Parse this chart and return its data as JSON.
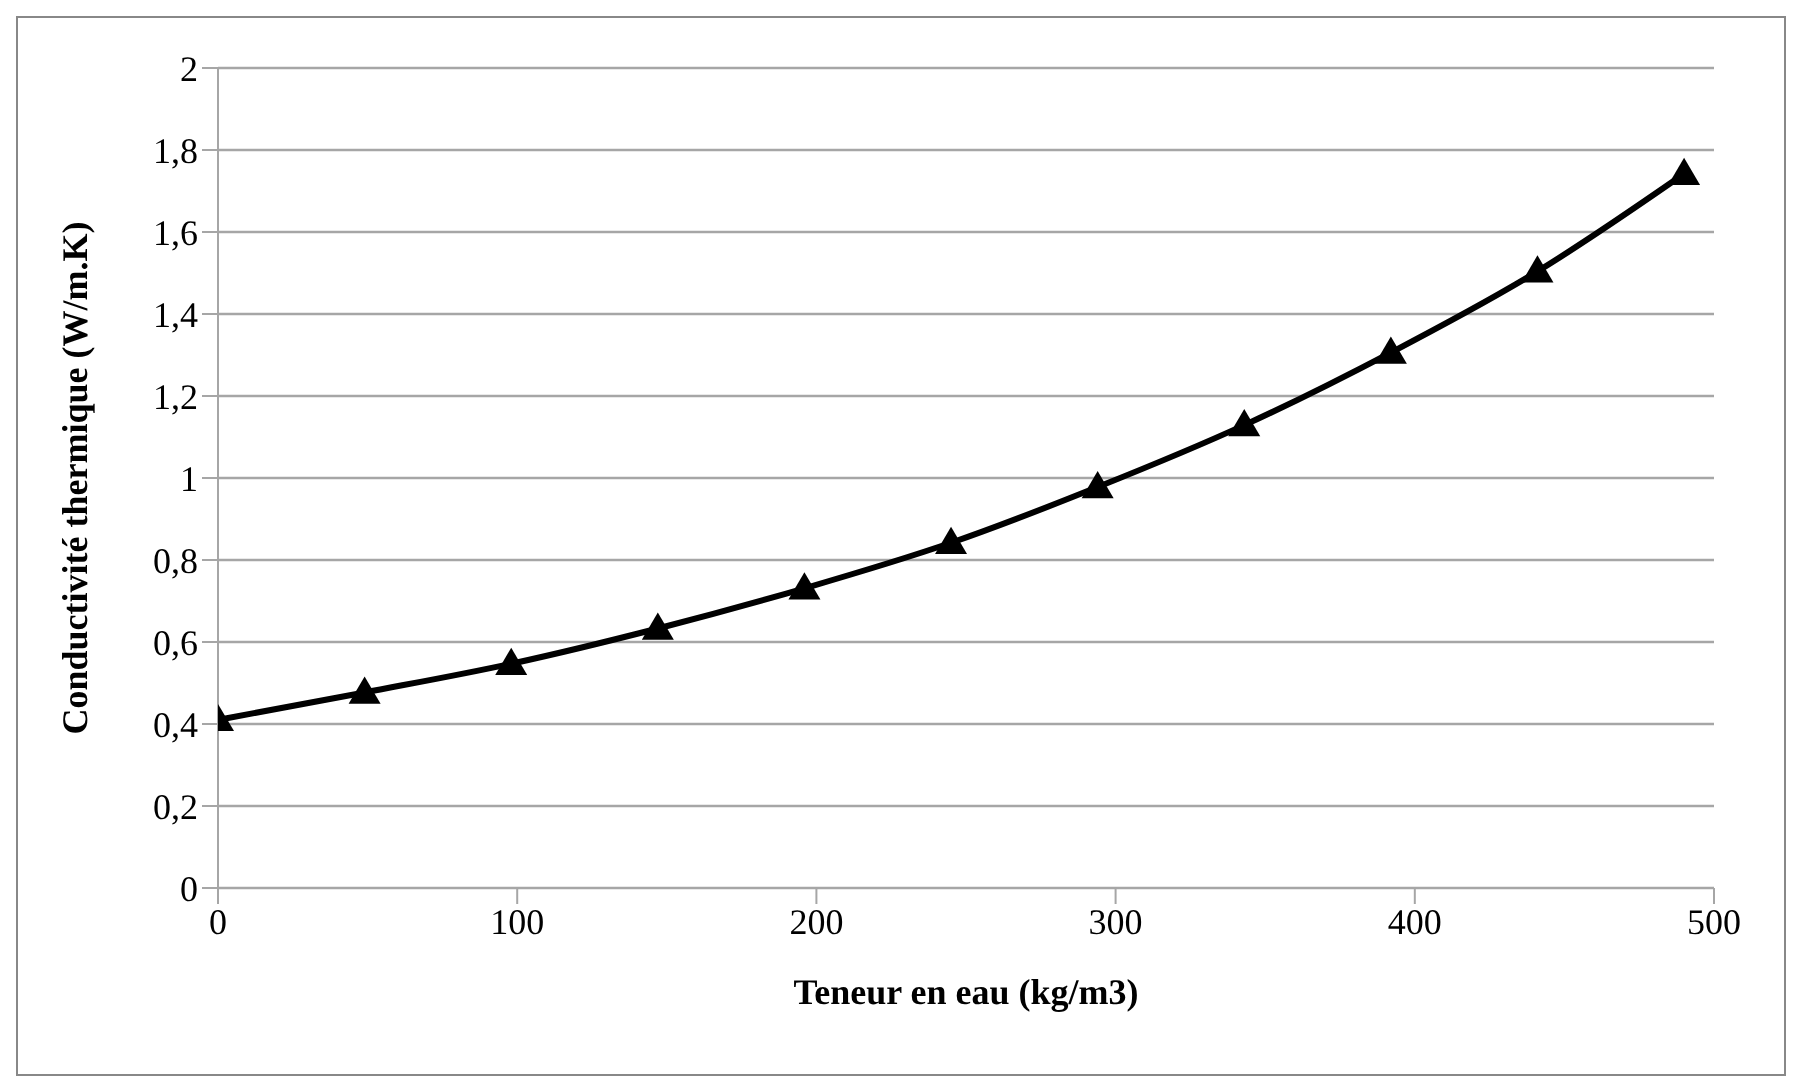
{
  "chart_data": {
    "type": "line",
    "xlabel": "Teneur en eau (kg/m3)",
    "ylabel": "Conductivité thermique  (W/m.K)",
    "x": [
      0,
      49,
      98,
      147,
      196,
      245,
      294,
      343,
      392,
      441,
      490
    ],
    "series": [
      {
        "color": "#000000",
        "values": [
          0.41,
          0.477,
          0.547,
          0.633,
          0.731,
          0.842,
          0.978,
          1.129,
          1.306,
          1.504,
          1.742
        ]
      }
    ],
    "xlim": [
      0,
      500
    ],
    "xticks": [
      0,
      100,
      200,
      300,
      400,
      500
    ],
    "ylim": [
      0,
      2
    ],
    "yticks": [
      0,
      {
        "value": 0.2,
        "label": "0,2"
      },
      {
        "value": 0.4,
        "label": "0,4"
      },
      {
        "value": 0.6,
        "label": "0,6"
      },
      {
        "value": 0.8,
        "label": "0,8"
      },
      1,
      {
        "value": 1.2,
        "label": "1,2"
      },
      {
        "value": 1.4,
        "label": "1,4"
      },
      {
        "value": 1.6,
        "label": "1,6"
      },
      {
        "value": 1.8,
        "label": "1,8"
      },
      2
    ],
    "grid": "y",
    "marker": "triangle",
    "line_style": "solid",
    "legend": false
  }
}
